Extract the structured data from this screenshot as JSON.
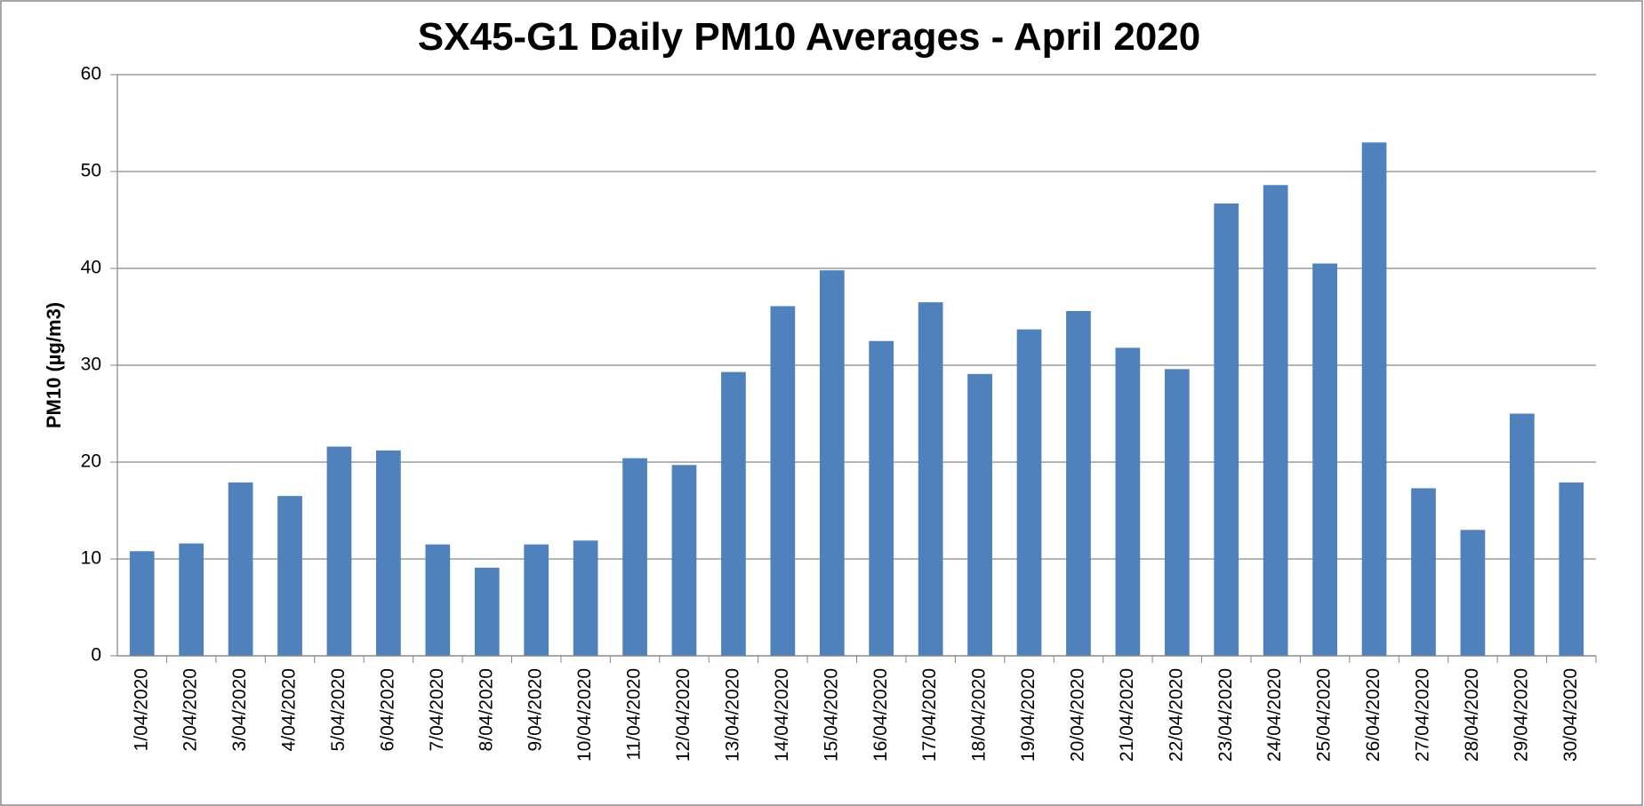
{
  "chart_data": {
    "type": "bar",
    "title": "SX45-G1 Daily PM10 Averages - April 2020",
    "y_label": "PM10 (µg/m3)",
    "categories": [
      "1/04/2020",
      "2/04/2020",
      "3/04/2020",
      "4/04/2020",
      "5/04/2020",
      "6/04/2020",
      "7/04/2020",
      "8/04/2020",
      "9/04/2020",
      "10/04/2020",
      "11/04/2020",
      "12/04/2020",
      "13/04/2020",
      "14/04/2020",
      "15/04/2020",
      "16/04/2020",
      "17/04/2020",
      "18/04/2020",
      "19/04/2020",
      "20/04/2020",
      "21/04/2020",
      "22/04/2020",
      "23/04/2020",
      "24/04/2020",
      "25/04/2020",
      "26/04/2020",
      "27/04/2020",
      "28/04/2020",
      "29/04/2020",
      "30/04/2020"
    ],
    "values": [
      10.8,
      11.6,
      17.9,
      16.5,
      21.6,
      21.2,
      11.5,
      9.1,
      11.5,
      11.9,
      20.4,
      19.7,
      29.3,
      36.1,
      39.8,
      32.5,
      36.5,
      29.1,
      33.7,
      35.6,
      31.8,
      29.6,
      46.7,
      48.6,
      40.5,
      53.0,
      17.3,
      13.0,
      25.0,
      17.9
    ],
    "color": "#4f81bd",
    "ylim": [
      0,
      60
    ],
    "yticks": [
      0,
      10,
      20,
      30,
      40,
      50,
      60
    ],
    "grid": true
  }
}
